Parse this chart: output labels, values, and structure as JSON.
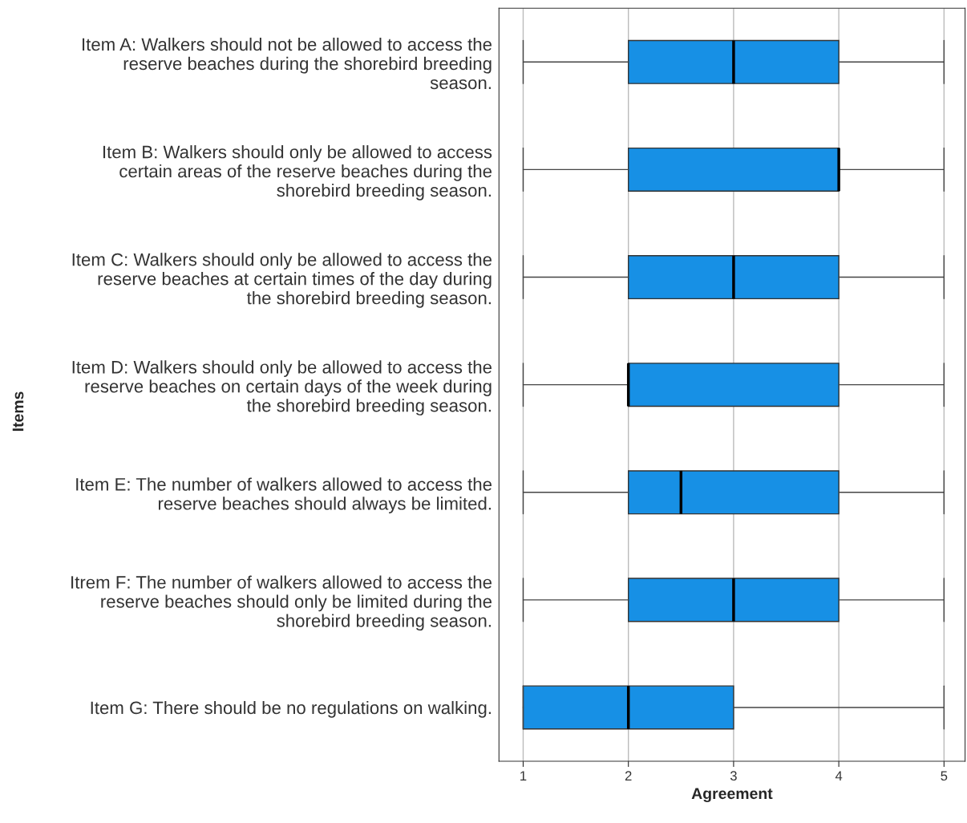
{
  "chart_data": {
    "type": "box",
    "orientation": "horizontal",
    "xlabel": "Agreement",
    "ylabel": "Items",
    "categories": [
      "Item A: Walkers should not be allowed to access the\nreserve beaches during the shorebird breeding\nseason.",
      "Item B: Walkers should only be allowed to access\ncertain areas of the reserve beaches during the\nshorebird breeding season.",
      "Item C: Walkers should only be allowed to access the\nreserve beaches at certain times of the day during\nthe shorebird breeding season.",
      "Item D: Walkers should only be allowed to access the\nreserve beaches on certain days of the week during\nthe shorebird breeding season.",
      "Item E: The number of walkers allowed to access the\nreserve beaches should always be limited.",
      "Itrem F: The number of walkers allowed to access the\nreserve beaches should only be limited during the\nshorebird breeding season.",
      "Item G: There should be no regulations on walking."
    ],
    "boxes": [
      {
        "low": 1,
        "q1": 2,
        "median": 3,
        "q3": 4,
        "high": 5
      },
      {
        "low": 1,
        "q1": 2,
        "median": 4,
        "q3": 4,
        "high": 5
      },
      {
        "low": 1,
        "q1": 2,
        "median": 3,
        "q3": 4,
        "high": 5
      },
      {
        "low": 1,
        "q1": 2,
        "median": 2,
        "q3": 4,
        "high": 5
      },
      {
        "low": 1,
        "q1": 2,
        "median": 2.5,
        "q3": 4,
        "high": 5
      },
      {
        "low": 1,
        "q1": 2,
        "median": 3,
        "q3": 4,
        "high": 5
      },
      {
        "low": 1,
        "q1": 1,
        "median": 2,
        "q3": 3,
        "high": 5
      }
    ],
    "color": "#1790e5",
    "xlim": [
      0.77,
      5.2
    ],
    "xticks": [
      1,
      2,
      3,
      4,
      5
    ],
    "grid": "x"
  }
}
